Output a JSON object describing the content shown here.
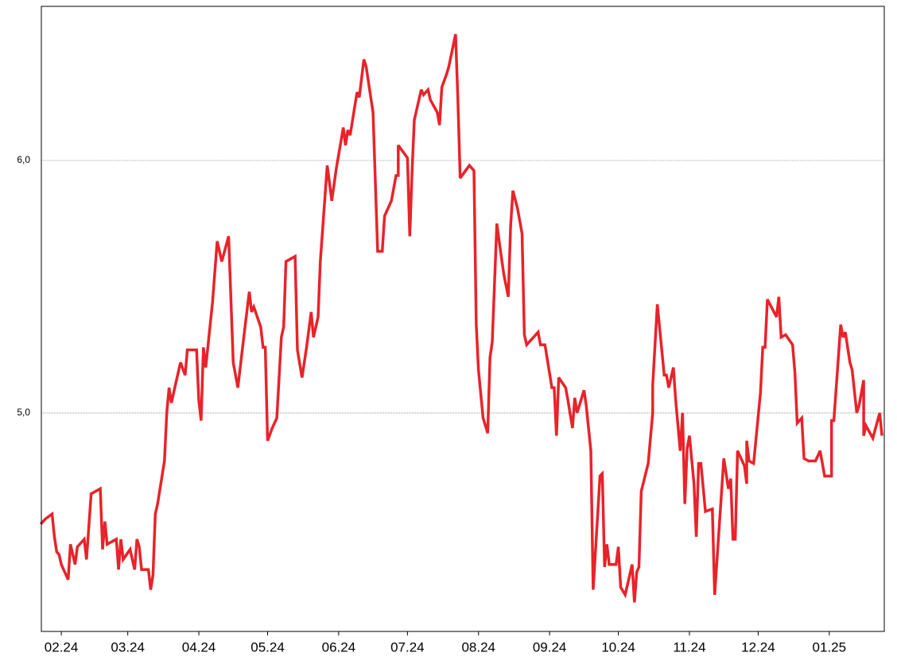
{
  "chart_data": {
    "type": "line",
    "color": "#e8232a",
    "grid": true,
    "xlim": [
      -8.7,
      359
    ],
    "ylim": [
      4.135,
      6.61
    ],
    "xticks": [
      {
        "value": 0,
        "label": "02.24"
      },
      {
        "value": 29,
        "label": "03.24"
      },
      {
        "value": 60,
        "label": "04.24"
      },
      {
        "value": 90,
        "label": "05.24"
      },
      {
        "value": 121,
        "label": "06.24"
      },
      {
        "value": 151,
        "label": "07.24"
      },
      {
        "value": 182,
        "label": "08.24"
      },
      {
        "value": 213,
        "label": "09.24"
      },
      {
        "value": 243,
        "label": "10.24"
      },
      {
        "value": 274,
        "label": "11.24"
      },
      {
        "value": 304,
        "label": "12.24"
      },
      {
        "value": 335,
        "label": "01.25"
      }
    ],
    "yticks": [
      {
        "value": 5,
        "label": "5,0"
      },
      {
        "value": 6,
        "label": "6,0"
      }
    ],
    "x": [
      -9,
      -7,
      -4,
      -3,
      -2,
      -1,
      0,
      3,
      4,
      6,
      7,
      10,
      11,
      13,
      15,
      17,
      18,
      19,
      20,
      24,
      25,
      26,
      27,
      30,
      32,
      33,
      34,
      35,
      38,
      39,
      40,
      41,
      42,
      45,
      46,
      47,
      48,
      50,
      52,
      54,
      55,
      59,
      60,
      61,
      62,
      63,
      66,
      68,
      70,
      73,
      75,
      77,
      80,
      82,
      83,
      84,
      87,
      88,
      89,
      90,
      92,
      94,
      96,
      97,
      98,
      102,
      103,
      105,
      107,
      109,
      110,
      112,
      113,
      116,
      118,
      120,
      123,
      124,
      125,
      126,
      129,
      130,
      132,
      133,
      136,
      138,
      140,
      141,
      144,
      146,
      147,
      147,
      151,
      152,
      153,
      154,
      157,
      158,
      160,
      161,
      164,
      165,
      166,
      168,
      169,
      172,
      173,
      174,
      178,
      180,
      181,
      182,
      184,
      186,
      187,
      188,
      190,
      191,
      193,
      195,
      196,
      197,
      199,
      201,
      202,
      203,
      205,
      208,
      209,
      211,
      214,
      215,
      216,
      217,
      220,
      221,
      223,
      224,
      225,
      228,
      229,
      231,
      232,
      235,
      236,
      237,
      238,
      239,
      242,
      243,
      244,
      246,
      249,
      250,
      251,
      252,
      253,
      256,
      258,
      258,
      260,
      263,
      264,
      265,
      267,
      268,
      270,
      271,
      272,
      273,
      274,
      276,
      277,
      278,
      279,
      281,
      284,
      285,
      289,
      290,
      291,
      292,
      293,
      294,
      295,
      298,
      299,
      299,
      300,
      302,
      305,
      306,
      307,
      308,
      312,
      313,
      314,
      316,
      319,
      320,
      321,
      323,
      324,
      326,
      329,
      331,
      333,
      336,
      336,
      337,
      340,
      341,
      342,
      344,
      345,
      347,
      348,
      350,
      350,
      351,
      354,
      357,
      358
    ],
    "values": [
      4.56,
      4.58,
      4.6,
      4.51,
      4.45,
      4.44,
      4.4,
      4.34,
      4.48,
      4.4,
      4.47,
      4.5,
      4.42,
      4.68,
      4.69,
      4.7,
      4.46,
      4.57,
      4.48,
      4.5,
      4.38,
      4.5,
      4.42,
      4.46,
      4.38,
      4.5,
      4.47,
      4.38,
      4.38,
      4.3,
      4.36,
      4.6,
      4.64,
      4.81,
      5.0,
      5.1,
      5.04,
      5.12,
      5.2,
      5.15,
      5.25,
      5.25,
      5.05,
      4.97,
      5.26,
      5.18,
      5.44,
      5.68,
      5.6,
      5.7,
      5.2,
      5.1,
      5.33,
      5.48,
      5.4,
      5.42,
      5.34,
      5.26,
      5.26,
      4.89,
      4.94,
      4.98,
      5.3,
      5.34,
      5.6,
      5.62,
      5.25,
      5.14,
      5.26,
      5.4,
      5.3,
      5.38,
      5.6,
      5.98,
      5.84,
      5.97,
      6.13,
      6.06,
      6.12,
      6.1,
      6.27,
      6.25,
      6.4,
      6.37,
      6.19,
      5.64,
      5.64,
      5.78,
      5.84,
      5.94,
      5.94,
      6.06,
      6.01,
      5.7,
      5.95,
      6.16,
      6.28,
      6.26,
      6.28,
      6.24,
      6.19,
      6.14,
      6.29,
      6.34,
      6.37,
      6.5,
      6.24,
      5.93,
      5.98,
      5.96,
      5.35,
      5.17,
      4.98,
      4.92,
      5.22,
      5.28,
      5.75,
      5.68,
      5.55,
      5.46,
      5.74,
      5.88,
      5.81,
      5.71,
      5.31,
      5.27,
      5.29,
      5.32,
      5.27,
      5.27,
      5.1,
      5.1,
      4.91,
      5.14,
      5.1,
      5.05,
      4.94,
      5.06,
      5.0,
      5.09,
      5.03,
      4.85,
      4.3,
      4.75,
      4.76,
      4.39,
      4.48,
      4.4,
      4.4,
      4.47,
      4.31,
      4.28,
      4.4,
      4.25,
      4.37,
      4.39,
      4.69,
      4.8,
      5.0,
      5.11,
      5.43,
      5.15,
      5.15,
      5.1,
      5.18,
      5.05,
      4.85,
      5.0,
      4.64,
      4.86,
      4.91,
      4.72,
      4.51,
      4.8,
      4.8,
      4.61,
      4.62,
      4.28,
      4.82,
      4.76,
      4.7,
      4.74,
      4.5,
      4.5,
      4.85,
      4.79,
      4.72,
      4.89,
      4.81,
      4.8,
      5.08,
      5.26,
      5.26,
      5.45,
      5.38,
      5.46,
      5.3,
      5.31,
      5.27,
      5.16,
      4.96,
      4.98,
      4.82,
      4.81,
      4.81,
      4.85,
      4.75,
      4.75,
      4.97,
      4.97,
      5.35,
      5.3,
      5.32,
      5.2,
      5.17,
      5.0,
      5.03,
      5.13,
      4.91,
      4.95,
      4.9,
      5.0,
      4.91
    ]
  }
}
